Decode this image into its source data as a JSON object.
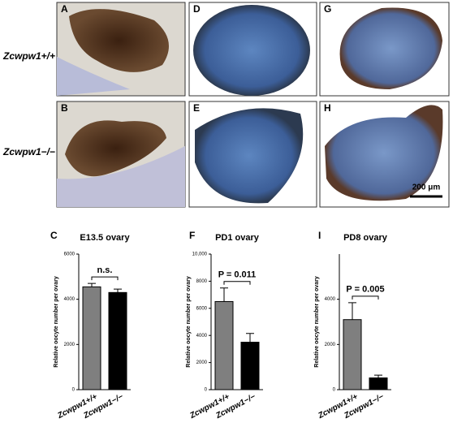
{
  "images": [
    {
      "letter": "A"
    },
    {
      "letter": "D"
    },
    {
      "letter": "G"
    },
    {
      "letter": "B"
    },
    {
      "letter": "E"
    },
    {
      "letter": "H"
    }
  ],
  "row_labels": [
    "Zcwpw1+/+",
    "Zcwpw1−/−"
  ],
  "scale_bar": "200 μm",
  "chart_data": [
    {
      "type": "bar",
      "panel_label": "C",
      "title": "E13.5 ovary",
      "y_label": "Relative oocyte number per ovary",
      "categories": [
        "Zcwpw1+/+",
        "Zcwpw1−/−"
      ],
      "values": [
        4550,
        4300
      ],
      "errors": [
        150,
        150
      ],
      "colors": [
        "#7f7f7f",
        "#000000"
      ],
      "ylim": [
        0,
        6000
      ],
      "yticks": [
        0,
        2000,
        4000,
        6000
      ],
      "annotation": "n.s."
    },
    {
      "type": "bar",
      "panel_label": "F",
      "title": "PD1 ovary",
      "y_label": "Relative oocyte number per ovary",
      "categories": [
        "Zcwpw1+/+",
        "Zcwpw1−/−"
      ],
      "values": [
        6500,
        3500
      ],
      "errors": [
        1000,
        650
      ],
      "colors": [
        "#7f7f7f",
        "#000000"
      ],
      "ylim": [
        0,
        10000
      ],
      "yticks": [
        0,
        2000,
        4000,
        6000,
        8000,
        {
          "value": 10000,
          "label": "10,000"
        }
      ],
      "annotation": "P = 0.011"
    },
    {
      "type": "bar",
      "panel_label": "I",
      "title": "PD8 ovary",
      "y_label": "Relative oocyte number per ovary",
      "categories": [
        "Zcwpw1+/+",
        "Zcwpw1−/−"
      ],
      "values": [
        3100,
        520
      ],
      "errors": [
        750,
        120
      ],
      "colors": [
        "#7f7f7f",
        "#000000"
      ],
      "ylim": [
        0,
        6000
      ],
      "yticks": [
        0,
        2000,
        4000
      ],
      "annotation": "P = 0.005"
    }
  ]
}
